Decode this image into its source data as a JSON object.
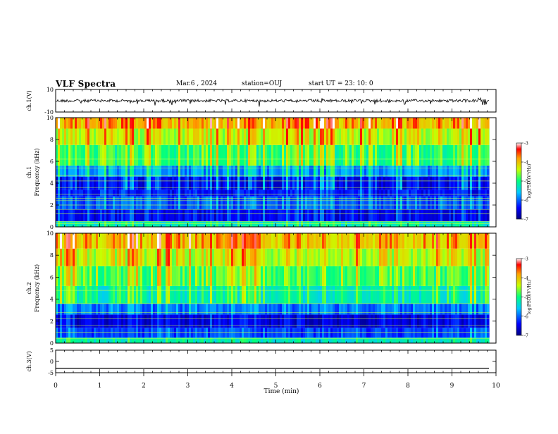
{
  "header": {
    "title": "VLF Spectra",
    "date": "Mar.6 , 2024",
    "station": "station=OUJ",
    "start_ut": "start UT = 23: 10: 0"
  },
  "chart_data": [
    {
      "type": "line",
      "panel": "ch1-waveform",
      "ylabel": "ch.1(V)",
      "ylim": [
        -10,
        10
      ],
      "yticks": [
        "10",
        "-10"
      ],
      "xlim": [
        0,
        10
      ],
      "description_level": 0,
      "data_end_min": 9.85,
      "color": "#000000"
    },
    {
      "type": "heatmap",
      "panel": "ch1-spectrogram",
      "ylabel": "ch.1 Frequency (kHz)",
      "ylabel_line1": "ch.1",
      "ylabel_line2": "Frequency (kHz)",
      "ylim": [
        0,
        10
      ],
      "yticks": [
        "0",
        "2",
        "4",
        "6",
        "8",
        "10"
      ],
      "xlim": [
        0,
        10
      ],
      "data_end_min": 9.85,
      "colorbar": {
        "label": "log(PSD)(V²/Hz)",
        "range": [
          -7,
          -3
        ],
        "ticks": [
          "-3",
          "-4",
          "-5",
          "-6",
          "-7"
        ]
      },
      "band_levels": [
        {
          "f": [
            0,
            0.5
          ],
          "level": -5.3
        },
        {
          "f": [
            0.5,
            1.6
          ],
          "level": -6.5
        },
        {
          "f": [
            1.6,
            2.8
          ],
          "level": -6.1
        },
        {
          "f": [
            2.8,
            3.4
          ],
          "level": -6.4
        },
        {
          "f": [
            3.4,
            4.6
          ],
          "level": -6.5
        },
        {
          "f": [
            4.6,
            5.6
          ],
          "level": -5.9
        },
        {
          "f": [
            5.6,
            7.5
          ],
          "level": -5.0
        },
        {
          "f": [
            7.5,
            9.0
          ],
          "level": -4.5
        },
        {
          "f": [
            9.0,
            10.0
          ],
          "level": -4.0
        }
      ],
      "lines_khz": [
        0.3,
        0.5,
        1.2,
        1.6,
        2.0,
        2.4,
        2.6,
        3.0,
        3.6,
        4.2,
        4.7,
        5.4,
        6.2
      ]
    },
    {
      "type": "heatmap",
      "panel": "ch2-spectrogram",
      "ylabel": "ch.2 Frequency (kHz)",
      "ylabel_line1": "ch.2",
      "ylabel_line2": "Frequency (kHz)",
      "ylim": [
        0,
        10
      ],
      "yticks": [
        "0",
        "2",
        "4",
        "6",
        "8",
        "10"
      ],
      "xlim": [
        0,
        10
      ],
      "data_end_min": 9.85,
      "colorbar": {
        "label": "log(PSD)(V²/Hz)",
        "range": [
          -7,
          -3
        ],
        "ticks": [
          "-3",
          "-4",
          "-5",
          "-6",
          "-7"
        ]
      },
      "band_levels": [
        {
          "f": [
            0,
            0.5
          ],
          "level": -5.3
        },
        {
          "f": [
            0.5,
            1.4
          ],
          "level": -6.2
        },
        {
          "f": [
            1.4,
            2.6
          ],
          "level": -6.6
        },
        {
          "f": [
            2.6,
            3.6
          ],
          "level": -6.0
        },
        {
          "f": [
            3.6,
            5.2
          ],
          "level": -5.3
        },
        {
          "f": [
            5.2,
            7.0
          ],
          "level": -4.9
        },
        {
          "f": [
            7.0,
            8.6
          ],
          "level": -4.5
        },
        {
          "f": [
            8.6,
            10.0
          ],
          "level": -4.1
        }
      ],
      "lines_khz": [
        0.4,
        1.0,
        1.6,
        2.2,
        2.8,
        3.6,
        4.8
      ]
    },
    {
      "type": "line",
      "panel": "ch3-waveform",
      "ylabel": "ch.3(V)",
      "ylim": [
        -5,
        5
      ],
      "yticks": [
        "5",
        "0",
        "-5"
      ],
      "xlim": [
        0,
        10
      ],
      "description_level": -3,
      "data_end_min": 9.85,
      "color": "#000000"
    }
  ],
  "x_axis": {
    "label": "Time (min)",
    "ticks": [
      "0",
      "1",
      "2",
      "3",
      "4",
      "5",
      "6",
      "7",
      "8",
      "9",
      "10"
    ]
  }
}
